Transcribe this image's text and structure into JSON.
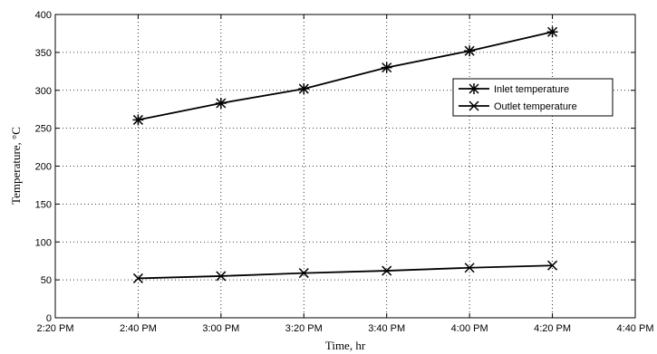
{
  "chart_data": {
    "type": "line",
    "xlabel": "Time, hr",
    "ylabel": "Temperature, °C",
    "x_ticks": [
      "2:20 PM",
      "2:40 PM",
      "3:00 PM",
      "3:20 PM",
      "3:40 PM",
      "4:00 PM",
      "4:20 PM",
      "4:40 PM"
    ],
    "x": [
      "2:40 PM",
      "3:00 PM",
      "3:20 PM",
      "3:40 PM",
      "4:00 PM",
      "4:20 PM"
    ],
    "xlim": [
      "2:20 PM",
      "4:40 PM"
    ],
    "ylim": [
      0,
      400
    ],
    "y_ticks": [
      0,
      50,
      100,
      150,
      200,
      250,
      300,
      350,
      400
    ],
    "grid": true,
    "legend_position": "upper-right",
    "series": [
      {
        "name": "Inlet temperature",
        "marker": "asterisk",
        "color": "#000000",
        "values": [
          261,
          283,
          302,
          330,
          352,
          377
        ]
      },
      {
        "name": "Outlet temperature",
        "marker": "x",
        "color": "#000000",
        "values": [
          52,
          55,
          59,
          62,
          66,
          69
        ]
      }
    ]
  }
}
